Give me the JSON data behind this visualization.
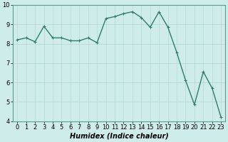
{
  "x": [
    0,
    1,
    2,
    3,
    4,
    5,
    6,
    7,
    8,
    9,
    10,
    11,
    12,
    13,
    14,
    15,
    16,
    17,
    18,
    19,
    20,
    21,
    22,
    23
  ],
  "y": [
    8.2,
    8.3,
    8.1,
    8.9,
    8.3,
    8.3,
    8.15,
    8.15,
    8.3,
    8.05,
    9.3,
    9.4,
    9.55,
    9.65,
    9.35,
    8.85,
    9.65,
    8.85,
    7.55,
    6.1,
    4.85,
    6.55,
    5.7,
    4.2
  ],
  "line_color": "#2e7d6e",
  "marker": "+",
  "marker_size": 3,
  "bg_color": "#ceecea",
  "grid_color": "#b8dcd8",
  "xlabel": "Humidex (Indice chaleur)",
  "xlim": [
    -0.5,
    23.5
  ],
  "ylim": [
    4,
    10
  ],
  "yticks": [
    4,
    5,
    6,
    7,
    8,
    9,
    10
  ],
  "xticks": [
    0,
    1,
    2,
    3,
    4,
    5,
    6,
    7,
    8,
    9,
    10,
    11,
    12,
    13,
    14,
    15,
    16,
    17,
    18,
    19,
    20,
    21,
    22,
    23
  ],
  "tick_fontsize": 6,
  "label_fontsize": 7,
  "line_width": 1.0,
  "spine_color": "#5a9e96"
}
